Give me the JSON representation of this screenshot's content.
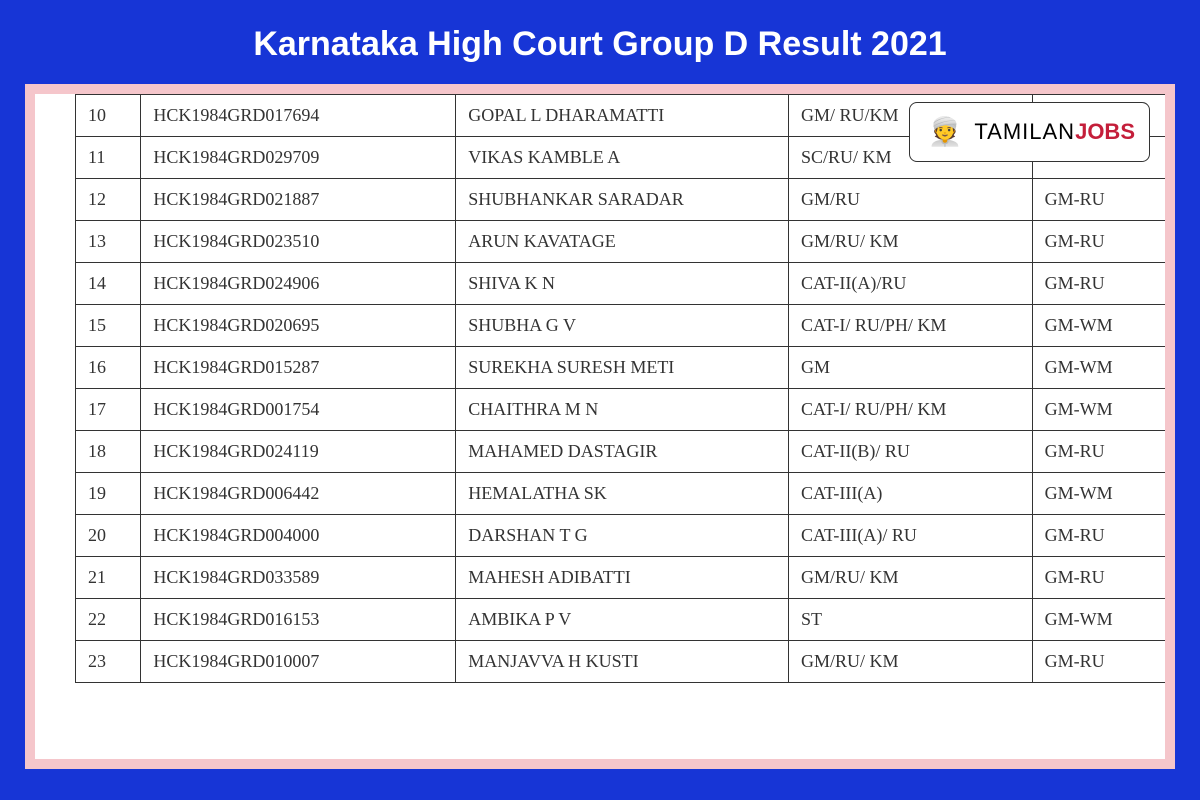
{
  "header": {
    "title": "Karnataka High Court Group D Result 2021"
  },
  "logo": {
    "icon": "👳",
    "text_first": "TAMILAN",
    "text_second": "JOBS"
  },
  "table": {
    "columns": [
      "sno",
      "application_no",
      "name",
      "category_claimed",
      "category_selected"
    ],
    "rows": [
      {
        "sno": "10",
        "app": "HCK1984GRD017694",
        "name": "GOPAL L DHARAMATTI",
        "cat": "GM/ RU/KM",
        "sel": ""
      },
      {
        "sno": "11",
        "app": "HCK1984GRD029709",
        "name": "VIKAS KAMBLE A",
        "cat": "SC/RU/ KM",
        "sel": ""
      },
      {
        "sno": "12",
        "app": "HCK1984GRD021887",
        "name": "SHUBHANKAR SARADAR",
        "cat": "GM/RU",
        "sel": "GM-RU"
      },
      {
        "sno": "13",
        "app": "HCK1984GRD023510",
        "name": "ARUN KAVATAGE",
        "cat": "GM/RU/ KM",
        "sel": "GM-RU"
      },
      {
        "sno": "14",
        "app": "HCK1984GRD024906",
        "name": "SHIVA K N",
        "cat": "CAT-II(A)/RU",
        "sel": "GM-RU"
      },
      {
        "sno": "15",
        "app": "HCK1984GRD020695",
        "name": "SHUBHA G V",
        "cat": "CAT-I/ RU/PH/ KM",
        "sel": "GM-WM"
      },
      {
        "sno": "16",
        "app": "HCK1984GRD015287",
        "name": "SUREKHA SURESH METI",
        "cat": "GM",
        "sel": "GM-WM"
      },
      {
        "sno": "17",
        "app": "HCK1984GRD001754",
        "name": "CHAITHRA M N",
        "cat": "CAT-I/ RU/PH/ KM",
        "sel": "GM-WM"
      },
      {
        "sno": "18",
        "app": "HCK1984GRD024119",
        "name": "MAHAMED DASTAGIR",
        "cat": "CAT-II(B)/ RU",
        "sel": "GM-RU"
      },
      {
        "sno": "19",
        "app": "HCK1984GRD006442",
        "name": "HEMALATHA SK",
        "cat": "CAT-III(A)",
        "sel": "GM-WM"
      },
      {
        "sno": "20",
        "app": "HCK1984GRD004000",
        "name": "DARSHAN T G",
        "cat": "CAT-III(A)/ RU",
        "sel": "GM-RU"
      },
      {
        "sno": "21",
        "app": "HCK1984GRD033589",
        "name": "MAHESH ADIBATTI",
        "cat": "GM/RU/ KM",
        "sel": "GM-RU"
      },
      {
        "sno": "22",
        "app": "HCK1984GRD016153",
        "name": "AMBIKA P V",
        "cat": "ST",
        "sel": "GM-WM"
      },
      {
        "sno": "23",
        "app": "HCK1984GRD010007",
        "name": "MANJAVVA H KUSTI",
        "cat": "GM/RU/ KM",
        "sel": "GM-RU"
      }
    ]
  },
  "styling": {
    "background_color": "#1735d6",
    "frame_color": "#f5c6cb",
    "inner_background": "#ffffff",
    "title_color": "#ffffff",
    "title_fontsize": 34,
    "cell_fontsize": 18,
    "border_color": "#333333",
    "text_color": "#333333",
    "logo_accent_color": "#c41e3a"
  }
}
